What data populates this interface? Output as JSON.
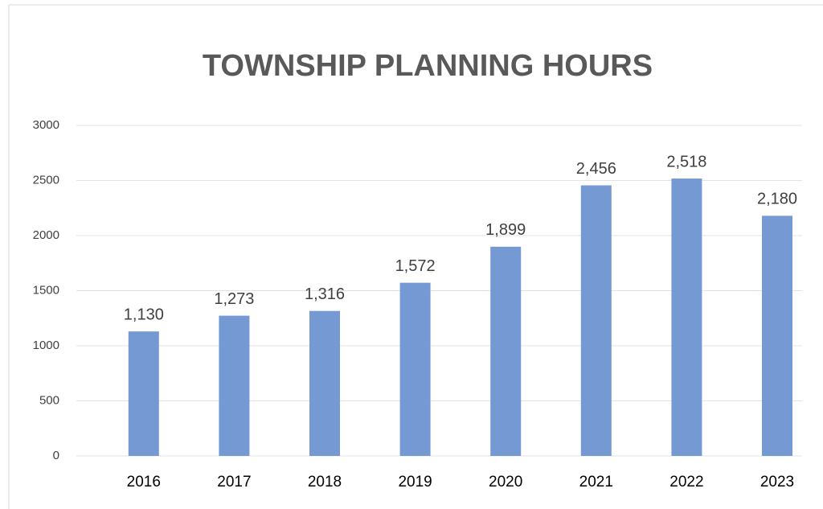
{
  "chart_data": {
    "type": "bar",
    "title": "TOWNSHIP PLANNING HOURS",
    "categories": [
      "2016",
      "2017",
      "2018",
      "2019",
      "2020",
      "2021",
      "2022",
      "2023"
    ],
    "values": [
      1130,
      1273,
      1316,
      1572,
      1899,
      2456,
      2518,
      2180
    ],
    "value_labels": [
      "1,130",
      "1,273",
      "1,316",
      "1,572",
      "1,899",
      "2,456",
      "2,518",
      "2,180"
    ],
    "color": "#7499d3",
    "ylim": [
      0,
      3000
    ],
    "yticks": [
      0,
      500,
      1000,
      1500,
      2000,
      2500,
      3000
    ],
    "grid": true
  }
}
